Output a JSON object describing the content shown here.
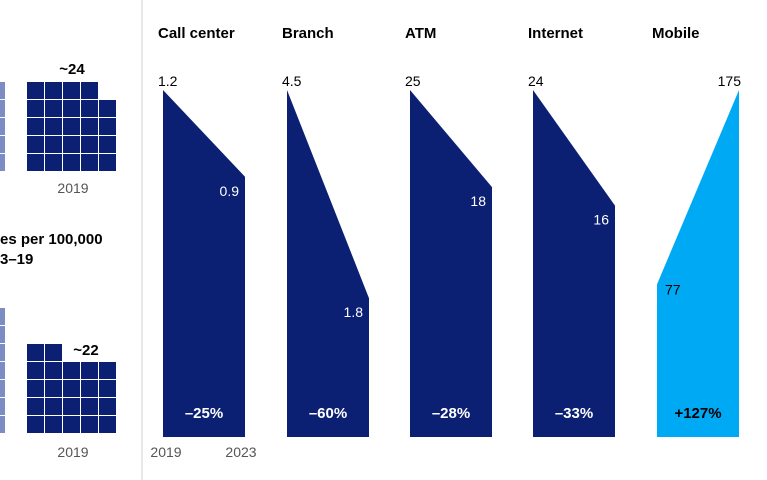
{
  "left_panel": {
    "top_block": {
      "value_label": "~24",
      "year_label": "2019",
      "grid_fill_count": 23
    },
    "middle_title_lines": [
      "es per 100,000",
      "3–19"
    ],
    "bottom_block": {
      "value_label": "~22",
      "year_label": "2019",
      "grid_fill_count": 22
    }
  },
  "chart_data": {
    "type": "area",
    "x_labels": [
      "2019",
      "2023"
    ],
    "series": [
      {
        "name": "Call center",
        "start": 1.2,
        "end": 0.9,
        "change": "–25%",
        "start_label": "1.2",
        "end_label": "0.9"
      },
      {
        "name": "Branch",
        "start": 4.5,
        "end": 1.8,
        "change": "–60%",
        "start_label": "4.5",
        "end_label": "1.8"
      },
      {
        "name": "ATM",
        "start": 25,
        "end": 18,
        "change": "–28%",
        "start_label": "25",
        "end_label": "18"
      },
      {
        "name": "Internet",
        "start": 24,
        "end": 16,
        "change": "–33%",
        "start_label": "24",
        "end_label": "16"
      },
      {
        "name": "Mobile",
        "start": 77,
        "end": 175,
        "change": "+127%",
        "start_label": "77",
        "end_label": "175"
      }
    ]
  },
  "colors": {
    "navy": "#0b1f73",
    "light_blue": "#00a9f4",
    "left_grid_fill": "#7e8cc4",
    "divider": "#d0d0d0",
    "year_text": "#555555"
  }
}
